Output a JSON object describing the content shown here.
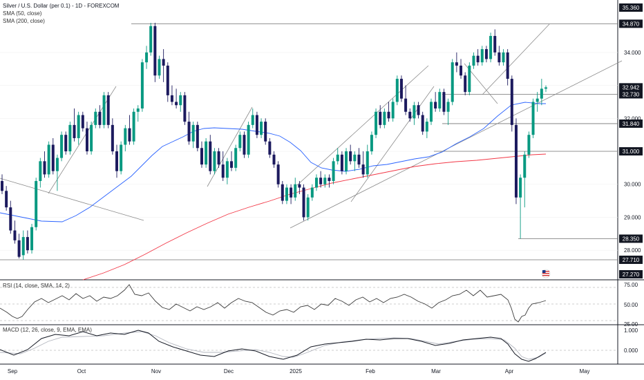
{
  "legends": {
    "title": "Silver / U.S. Dollar (per 0.1) - 1D - FOREXCOM",
    "sma50": "SMA (50, close)",
    "sma200": "SMA (200, close)",
    "rsi": "RSI (14, close, SMA, 14, 2)",
    "macd": "MACD (12, 26, close, 9, EMA, EMA)"
  },
  "colors": {
    "bull": "#089981",
    "bear": "#1c1a5e",
    "sma50": "#2962ff",
    "sma200": "#f23645",
    "trendline": "#9e9e9e",
    "grid": "#e6e6e6",
    "text": "#131722",
    "label_bg": "#131722",
    "label_fg": "#ffffff"
  },
  "price_axis": {
    "ticks": [
      "34.000",
      "33.000",
      "32.000",
      "31.000",
      "30.000",
      "29.000",
      "28.000"
    ],
    "badges": [
      "35.360",
      "34.870",
      "32.942",
      "32.730",
      "31.840",
      "31.000",
      "28.350",
      "27.710",
      "27.270"
    ]
  },
  "rsi_axis": {
    "ticks": [
      "75.00",
      "50.00",
      "25.00"
    ]
  },
  "macd_axis": {
    "ticks": [
      "1.000",
      "0.000"
    ]
  },
  "time_axis": {
    "labels": [
      "Sep",
      "Oct",
      "Nov",
      "Dec",
      "2025",
      "Feb",
      "Mar",
      "Apr",
      "May"
    ]
  },
  "chart_data": {
    "type": "candlestick",
    "symbol": "Silver / U.S. Dollar (per 0.1)",
    "timeframe": "1D",
    "price_range": [
      27.27,
      35.36
    ],
    "horizontal_levels": [
      34.87,
      32.73,
      31.84,
      31.0,
      28.35,
      27.71
    ],
    "last_price": 32.942,
    "x_labels": [
      "Sep",
      "Oct",
      "Nov",
      "Dec",
      "2025",
      "Feb",
      "Mar",
      "Apr",
      "May"
    ],
    "candles": [
      {
        "o": 30.1,
        "h": 30.3,
        "l": 29.7,
        "c": 29.8
      },
      {
        "o": 29.8,
        "h": 29.95,
        "l": 29.2,
        "c": 29.3
      },
      {
        "o": 29.3,
        "h": 29.5,
        "l": 28.5,
        "c": 28.6
      },
      {
        "o": 28.6,
        "h": 28.9,
        "l": 28.2,
        "c": 28.3
      },
      {
        "o": 28.3,
        "h": 28.5,
        "l": 27.75,
        "c": 27.8
      },
      {
        "o": 27.85,
        "h": 28.6,
        "l": 27.71,
        "c": 28.4
      },
      {
        "o": 28.4,
        "h": 28.6,
        "l": 27.9,
        "c": 28.0
      },
      {
        "o": 28.0,
        "h": 28.8,
        "l": 27.9,
        "c": 28.7
      },
      {
        "o": 28.7,
        "h": 30.2,
        "l": 28.6,
        "c": 30.1
      },
      {
        "o": 30.1,
        "h": 30.8,
        "l": 29.9,
        "c": 30.7
      },
      {
        "o": 30.7,
        "h": 31.0,
        "l": 30.2,
        "c": 30.3
      },
      {
        "o": 30.3,
        "h": 31.3,
        "l": 30.2,
        "c": 31.2
      },
      {
        "o": 31.2,
        "h": 31.4,
        "l": 30.3,
        "c": 30.4
      },
      {
        "o": 30.4,
        "h": 30.9,
        "l": 29.8,
        "c": 30.8
      },
      {
        "o": 30.8,
        "h": 31.6,
        "l": 30.7,
        "c": 31.5
      },
      {
        "o": 31.5,
        "h": 31.6,
        "l": 30.9,
        "c": 31.0
      },
      {
        "o": 31.0,
        "h": 31.9,
        "l": 30.9,
        "c": 31.8
      },
      {
        "o": 31.8,
        "h": 32.3,
        "l": 31.3,
        "c": 31.4
      },
      {
        "o": 31.4,
        "h": 32.2,
        "l": 31.2,
        "c": 32.1
      },
      {
        "o": 32.1,
        "h": 32.2,
        "l": 31.6,
        "c": 31.7
      },
      {
        "o": 31.7,
        "h": 31.9,
        "l": 30.9,
        "c": 31.0
      },
      {
        "o": 31.0,
        "h": 31.9,
        "l": 30.9,
        "c": 31.8
      },
      {
        "o": 31.8,
        "h": 32.3,
        "l": 31.7,
        "c": 32.2
      },
      {
        "o": 32.2,
        "h": 32.4,
        "l": 31.7,
        "c": 31.8
      },
      {
        "o": 31.8,
        "h": 32.8,
        "l": 31.7,
        "c": 32.7
      },
      {
        "o": 32.7,
        "h": 32.8,
        "l": 31.7,
        "c": 31.8
      },
      {
        "o": 31.8,
        "h": 32.0,
        "l": 30.9,
        "c": 31.0
      },
      {
        "o": 31.0,
        "h": 31.2,
        "l": 30.2,
        "c": 30.4
      },
      {
        "o": 30.4,
        "h": 31.3,
        "l": 30.3,
        "c": 31.2
      },
      {
        "o": 31.2,
        "h": 31.8,
        "l": 31.0,
        "c": 31.7
      },
      {
        "o": 31.7,
        "h": 32.1,
        "l": 31.2,
        "c": 31.3
      },
      {
        "o": 31.3,
        "h": 32.3,
        "l": 31.2,
        "c": 32.2
      },
      {
        "o": 32.2,
        "h": 32.4,
        "l": 31.9,
        "c": 32.3
      },
      {
        "o": 32.3,
        "h": 33.8,
        "l": 32.2,
        "c": 33.7
      },
      {
        "o": 33.7,
        "h": 34.2,
        "l": 33.5,
        "c": 34.0
      },
      {
        "o": 34.0,
        "h": 34.9,
        "l": 33.9,
        "c": 34.8
      },
      {
        "o": 34.8,
        "h": 34.9,
        "l": 33.1,
        "c": 33.3
      },
      {
        "o": 33.3,
        "h": 33.9,
        "l": 33.2,
        "c": 33.8
      },
      {
        "o": 33.8,
        "h": 34.1,
        "l": 33.1,
        "c": 33.6
      },
      {
        "o": 33.6,
        "h": 33.7,
        "l": 32.5,
        "c": 32.7
      },
      {
        "o": 32.7,
        "h": 33.0,
        "l": 32.4,
        "c": 32.5
      },
      {
        "o": 32.5,
        "h": 32.9,
        "l": 32.3,
        "c": 32.4
      },
      {
        "o": 32.4,
        "h": 32.8,
        "l": 32.2,
        "c": 32.7
      },
      {
        "o": 32.7,
        "h": 32.8,
        "l": 31.8,
        "c": 31.9
      },
      {
        "o": 31.9,
        "h": 32.2,
        "l": 31.2,
        "c": 31.3
      },
      {
        "o": 31.3,
        "h": 31.9,
        "l": 31.1,
        "c": 31.8
      },
      {
        "o": 31.8,
        "h": 31.9,
        "l": 31.0,
        "c": 31.1
      },
      {
        "o": 31.1,
        "h": 31.3,
        "l": 30.5,
        "c": 30.6
      },
      {
        "o": 30.6,
        "h": 31.4,
        "l": 30.5,
        "c": 31.3
      },
      {
        "o": 31.3,
        "h": 31.5,
        "l": 30.3,
        "c": 30.4
      },
      {
        "o": 30.4,
        "h": 31.1,
        "l": 30.3,
        "c": 31.0
      },
      {
        "o": 31.0,
        "h": 31.1,
        "l": 30.5,
        "c": 30.6
      },
      {
        "o": 30.6,
        "h": 31.0,
        "l": 30.1,
        "c": 30.2
      },
      {
        "o": 30.2,
        "h": 30.8,
        "l": 30.0,
        "c": 30.7
      },
      {
        "o": 30.7,
        "h": 31.0,
        "l": 30.4,
        "c": 30.5
      },
      {
        "o": 30.5,
        "h": 31.2,
        "l": 30.4,
        "c": 31.1
      },
      {
        "o": 31.1,
        "h": 31.6,
        "l": 31.0,
        "c": 31.5
      },
      {
        "o": 31.5,
        "h": 31.6,
        "l": 30.8,
        "c": 30.9
      },
      {
        "o": 30.9,
        "h": 31.9,
        "l": 30.8,
        "c": 31.8
      },
      {
        "o": 31.8,
        "h": 32.3,
        "l": 31.7,
        "c": 32.1
      },
      {
        "o": 32.1,
        "h": 32.2,
        "l": 31.4,
        "c": 31.5
      },
      {
        "o": 31.5,
        "h": 32.0,
        "l": 31.4,
        "c": 31.9
      },
      {
        "o": 31.9,
        "h": 32.0,
        "l": 31.2,
        "c": 31.3
      },
      {
        "o": 31.3,
        "h": 31.4,
        "l": 30.8,
        "c": 30.9
      },
      {
        "o": 30.9,
        "h": 31.0,
        "l": 30.5,
        "c": 30.6
      },
      {
        "o": 30.6,
        "h": 30.7,
        "l": 29.9,
        "c": 30.0
      },
      {
        "o": 30.0,
        "h": 30.1,
        "l": 29.4,
        "c": 29.5
      },
      {
        "o": 29.5,
        "h": 30.0,
        "l": 29.4,
        "c": 29.9
      },
      {
        "o": 29.9,
        "h": 30.0,
        "l": 29.4,
        "c": 29.6
      },
      {
        "o": 29.6,
        "h": 30.2,
        "l": 29.5,
        "c": 30.0
      },
      {
        "o": 30.0,
        "h": 30.1,
        "l": 29.7,
        "c": 29.9
      },
      {
        "o": 29.9,
        "h": 30.0,
        "l": 28.9,
        "c": 29.0
      },
      {
        "o": 29.0,
        "h": 29.7,
        "l": 28.9,
        "c": 29.6
      },
      {
        "o": 29.6,
        "h": 30.0,
        "l": 29.5,
        "c": 29.9
      },
      {
        "o": 29.9,
        "h": 30.3,
        "l": 29.8,
        "c": 30.2
      },
      {
        "o": 30.2,
        "h": 30.4,
        "l": 29.9,
        "c": 30.0
      },
      {
        "o": 30.0,
        "h": 30.3,
        "l": 29.9,
        "c": 30.2
      },
      {
        "o": 30.2,
        "h": 30.3,
        "l": 29.9,
        "c": 30.1
      },
      {
        "o": 30.1,
        "h": 30.8,
        "l": 30.0,
        "c": 30.7
      },
      {
        "o": 30.7,
        "h": 31.1,
        "l": 30.6,
        "c": 30.9
      },
      {
        "o": 30.9,
        "h": 31.0,
        "l": 30.3,
        "c": 30.4
      },
      {
        "o": 30.4,
        "h": 31.1,
        "l": 30.3,
        "c": 31.0
      },
      {
        "o": 31.0,
        "h": 31.2,
        "l": 30.6,
        "c": 30.7
      },
      {
        "o": 30.7,
        "h": 31.0,
        "l": 30.4,
        "c": 30.9
      },
      {
        "o": 30.9,
        "h": 31.1,
        "l": 30.5,
        "c": 30.6
      },
      {
        "o": 30.6,
        "h": 31.0,
        "l": 30.2,
        "c": 30.3
      },
      {
        "o": 30.3,
        "h": 31.2,
        "l": 30.2,
        "c": 31.0
      },
      {
        "o": 31.0,
        "h": 31.6,
        "l": 30.9,
        "c": 31.5
      },
      {
        "o": 31.5,
        "h": 32.3,
        "l": 31.4,
        "c": 32.2
      },
      {
        "o": 32.2,
        "h": 32.4,
        "l": 31.7,
        "c": 31.8
      },
      {
        "o": 31.8,
        "h": 32.3,
        "l": 31.7,
        "c": 32.2
      },
      {
        "o": 32.2,
        "h": 32.5,
        "l": 31.9,
        "c": 32.0
      },
      {
        "o": 32.0,
        "h": 32.6,
        "l": 31.9,
        "c": 32.5
      },
      {
        "o": 32.5,
        "h": 33.3,
        "l": 32.4,
        "c": 33.2
      },
      {
        "o": 33.2,
        "h": 33.3,
        "l": 32.5,
        "c": 32.6
      },
      {
        "o": 32.6,
        "h": 33.0,
        "l": 32.1,
        "c": 32.2
      },
      {
        "o": 32.2,
        "h": 32.3,
        "l": 31.9,
        "c": 32.0
      },
      {
        "o": 32.0,
        "h": 32.5,
        "l": 31.8,
        "c": 32.4
      },
      {
        "o": 32.4,
        "h": 32.5,
        "l": 32.0,
        "c": 32.1
      },
      {
        "o": 32.1,
        "h": 32.2,
        "l": 31.5,
        "c": 31.6
      },
      {
        "o": 31.6,
        "h": 32.0,
        "l": 31.4,
        "c": 31.9
      },
      {
        "o": 31.9,
        "h": 32.6,
        "l": 31.8,
        "c": 32.5
      },
      {
        "o": 32.5,
        "h": 32.8,
        "l": 32.2,
        "c": 32.3
      },
      {
        "o": 32.3,
        "h": 32.9,
        "l": 32.2,
        "c": 32.8
      },
      {
        "o": 32.8,
        "h": 32.9,
        "l": 32.1,
        "c": 32.2
      },
      {
        "o": 32.2,
        "h": 32.6,
        "l": 31.8,
        "c": 32.5
      },
      {
        "o": 32.5,
        "h": 33.8,
        "l": 32.4,
        "c": 33.7
      },
      {
        "o": 33.7,
        "h": 34.0,
        "l": 33.4,
        "c": 33.6
      },
      {
        "o": 33.6,
        "h": 33.8,
        "l": 33.2,
        "c": 33.3
      },
      {
        "o": 33.3,
        "h": 33.4,
        "l": 32.7,
        "c": 32.8
      },
      {
        "o": 32.8,
        "h": 33.7,
        "l": 32.7,
        "c": 33.6
      },
      {
        "o": 33.6,
        "h": 34.0,
        "l": 33.5,
        "c": 33.9
      },
      {
        "o": 33.9,
        "h": 34.1,
        "l": 33.6,
        "c": 33.7
      },
      {
        "o": 33.7,
        "h": 34.2,
        "l": 33.6,
        "c": 34.1
      },
      {
        "o": 34.1,
        "h": 34.2,
        "l": 33.7,
        "c": 33.8
      },
      {
        "o": 33.8,
        "h": 34.6,
        "l": 33.7,
        "c": 34.5
      },
      {
        "o": 34.5,
        "h": 34.7,
        "l": 33.9,
        "c": 34.0
      },
      {
        "o": 34.0,
        "h": 34.2,
        "l": 33.6,
        "c": 33.7
      },
      {
        "o": 33.7,
        "h": 34.1,
        "l": 33.6,
        "c": 34.0
      },
      {
        "o": 34.0,
        "h": 34.1,
        "l": 33.0,
        "c": 33.2
      },
      {
        "o": 33.2,
        "h": 33.3,
        "l": 31.6,
        "c": 31.8
      },
      {
        "o": 31.8,
        "h": 32.0,
        "l": 29.4,
        "c": 29.6
      },
      {
        "o": 29.6,
        "h": 30.3,
        "l": 28.35,
        "c": 30.2
      },
      {
        "o": 30.2,
        "h": 31.0,
        "l": 29.3,
        "c": 30.9
      },
      {
        "o": 30.9,
        "h": 31.6,
        "l": 30.8,
        "c": 31.5
      },
      {
        "o": 31.5,
        "h": 32.6,
        "l": 31.4,
        "c": 32.5
      },
      {
        "o": 32.5,
        "h": 32.8,
        "l": 32.2,
        "c": 32.6
      },
      {
        "o": 32.6,
        "h": 33.2,
        "l": 32.4,
        "c": 32.9
      },
      {
        "o": 32.9,
        "h": 33.0,
        "l": 32.8,
        "c": 32.94
      }
    ],
    "rsi_range": [
      25,
      75
    ],
    "macd_range": [
      -0.8,
      1.2
    ]
  }
}
